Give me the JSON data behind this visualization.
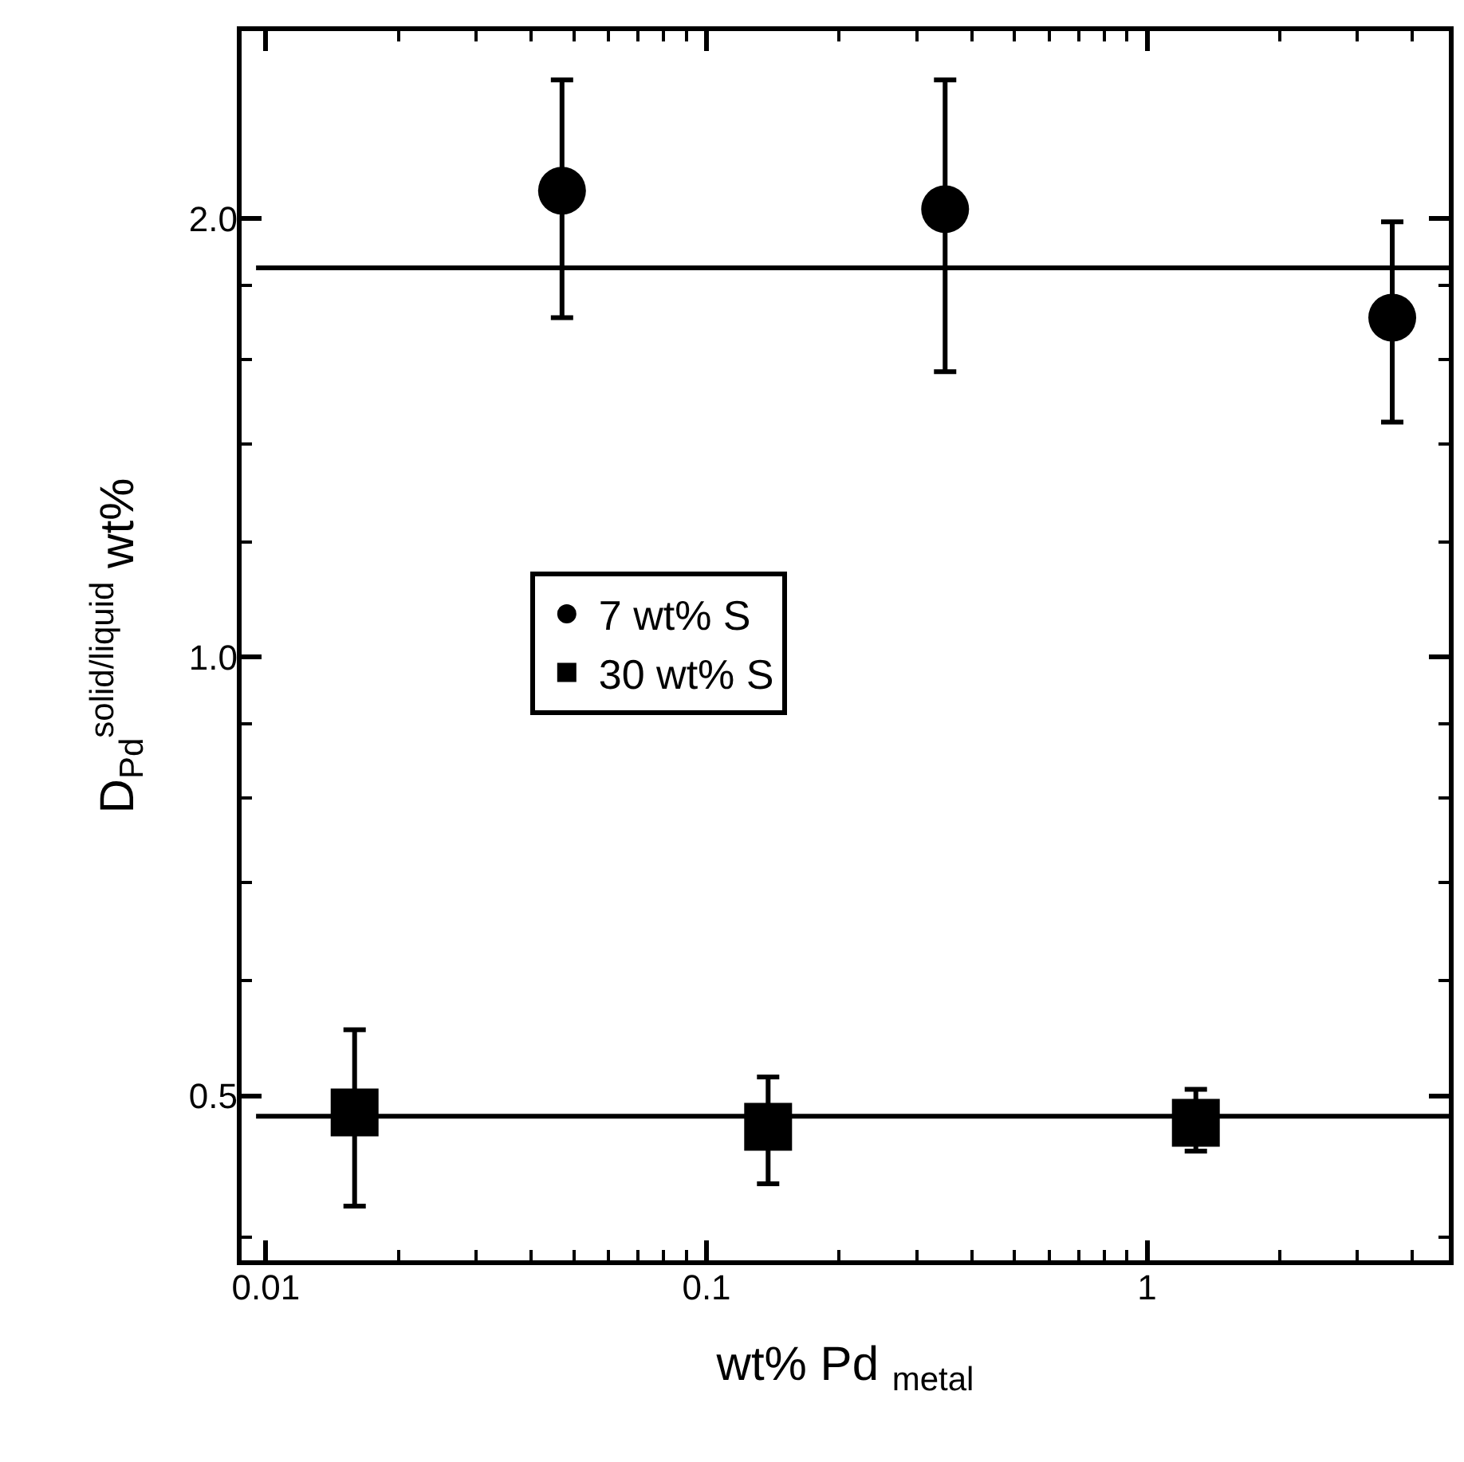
{
  "chart_data": {
    "type": "scatter",
    "xlabel": "wt% Pd $_{metal}$",
    "ylabel": "D$_{Pd}$$^{solid/liquid}$ wt%",
    "log": "xy",
    "xlim": [
      0.0087,
      4.9
    ],
    "ylim": [
      0.384,
      2.7
    ],
    "xticks": [
      0.01,
      0.1,
      1,
      {
        "value": 0.02,
        "label": null
      },
      {
        "value": 0.03,
        "label": null
      },
      {
        "value": 0.04,
        "label": null
      },
      {
        "value": 0.05,
        "label": null
      },
      {
        "value": 0.06,
        "label": null
      },
      {
        "value": 0.07,
        "label": null
      },
      {
        "value": 0.08,
        "label": null
      },
      {
        "value": 0.09,
        "label": null
      },
      {
        "value": 0.2,
        "label": null
      },
      {
        "value": 0.3,
        "label": null
      },
      {
        "value": 0.4,
        "label": null
      },
      {
        "value": 0.5,
        "label": null
      },
      {
        "value": 0.6,
        "label": null
      },
      {
        "value": 0.7,
        "label": null
      },
      {
        "value": 0.8,
        "label": null
      },
      {
        "value": 0.9,
        "label": null
      },
      {
        "value": 2,
        "label": null
      },
      {
        "value": 3,
        "label": null
      },
      {
        "value": 4,
        "label": null
      }
    ],
    "yticks": [
      {
        "value": 0.5,
        "label": "0.5"
      },
      {
        "value": 1,
        "label": "1.0"
      },
      {
        "value": 2,
        "label": "2.0"
      },
      {
        "value": 0.4,
        "label": null
      },
      {
        "value": 0.6,
        "label": null
      },
      {
        "value": 0.7,
        "label": null
      },
      {
        "value": 0.8,
        "label": null
      },
      {
        "value": 0.9,
        "label": null
      },
      {
        "value": 1.2,
        "label": null
      },
      {
        "value": 1.4,
        "label": null
      },
      {
        "value": 1.6,
        "label": null
      },
      {
        "value": 1.8,
        "label": null
      }
    ],
    "legend": "center left",
    "series": [
      {
        "name": "7 wt% S",
        "color": "#000000",
        "marker": "circle",
        "x": [
          0.047,
          0.348,
          3.6
        ],
        "values": [
          2.09,
          2.03,
          1.71
        ],
        "errors": [
          [
            1.71,
            2.49
          ],
          [
            1.57,
            2.49
          ],
          [
            1.45,
            1.99
          ]
        ]
      },
      {
        "name": "30 wt% S",
        "color": "#000000",
        "marker": "square",
        "x": [
          0.0159,
          0.138,
          1.29
        ],
        "values": [
          0.487,
          0.476,
          0.479
        ],
        "errors": [
          [
            0.42,
            0.555
          ],
          [
            0.435,
            0.515
          ],
          [
            0.458,
            0.505
          ]
        ]
      },
      {
        "type": "line",
        "color": "#000000",
        "marker": "none",
        "x": [
          0.0095,
          4.9
        ],
        "values": [
          1.85,
          1.85
        ]
      },
      {
        "type": "line",
        "color": "#000000",
        "marker": "none",
        "x": [
          0.0095,
          4.9
        ],
        "values": [
          0.484,
          0.484
        ]
      }
    ]
  }
}
